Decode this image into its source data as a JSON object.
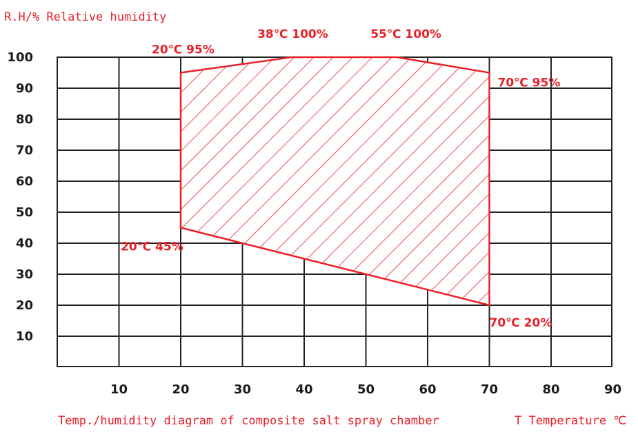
{
  "chart_data": {
    "type": "area",
    "ylabel": "R.H/% Relative humidity",
    "xlabel": "T Temperature ℃",
    "caption": "Temp./humidity diagram of composite salt spray chamber",
    "xlim": [
      0,
      90
    ],
    "ylim": [
      0,
      100
    ],
    "x_ticks": [
      10,
      20,
      30,
      40,
      50,
      60,
      70,
      80,
      90
    ],
    "y_ticks": [
      10,
      20,
      30,
      40,
      50,
      60,
      70,
      80,
      90,
      100
    ],
    "grid": true,
    "region": {
      "fill": "hatched",
      "color": "#e8202a",
      "points": [
        {
          "x": 20,
          "y": 95
        },
        {
          "x": 38,
          "y": 100
        },
        {
          "x": 55,
          "y": 100
        },
        {
          "x": 70,
          "y": 95
        },
        {
          "x": 70,
          "y": 20
        },
        {
          "x": 20,
          "y": 45
        }
      ]
    },
    "annotations": [
      {
        "text": "20℃ 95%",
        "x": 20,
        "y": 95
      },
      {
        "text": "38℃ 100%",
        "x": 38,
        "y": 100
      },
      {
        "text": "55℃ 100%",
        "x": 55,
        "y": 100
      },
      {
        "text": "70℃ 95%",
        "x": 70,
        "y": 95
      },
      {
        "text": "20℃ 45%",
        "x": 20,
        "y": 45
      },
      {
        "text": "70℃ 20%",
        "x": 70,
        "y": 20
      }
    ]
  },
  "colors": {
    "accent": "#e8202a",
    "grid": "#222222",
    "text": "#1a1a1a"
  }
}
